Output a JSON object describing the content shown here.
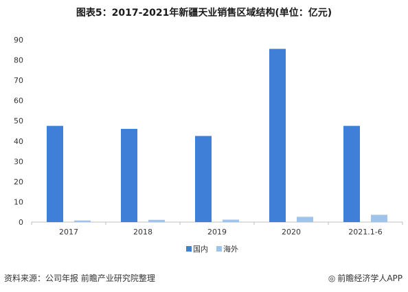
{
  "chart_data": {
    "type": "bar",
    "title": "图表5：2017-2021年新疆天业销售区域结构(单位：亿元)",
    "categories": [
      "2017",
      "2018",
      "2019",
      "2020",
      "2021.1-6"
    ],
    "series": [
      {
        "name": "国内",
        "color": "#3f7fd8",
        "values": [
          47.5,
          46,
          42.5,
          85.5,
          47.5
        ]
      },
      {
        "name": "海外",
        "color": "#9fc4ec",
        "values": [
          0.8,
          1.1,
          1.2,
          2.6,
          3.6
        ]
      }
    ],
    "yticks": [
      "0",
      "10",
      "20",
      "30",
      "40",
      "50",
      "60",
      "70",
      "80",
      "90"
    ],
    "ylim": [
      0,
      90
    ],
    "grid": false,
    "legend": "bottom-center"
  },
  "footer": {
    "source": "资料来源：公司年报 前瞻产业研究院整理",
    "brand": "前瞻经济学人APP",
    "brand_icon": "compass-icon"
  }
}
